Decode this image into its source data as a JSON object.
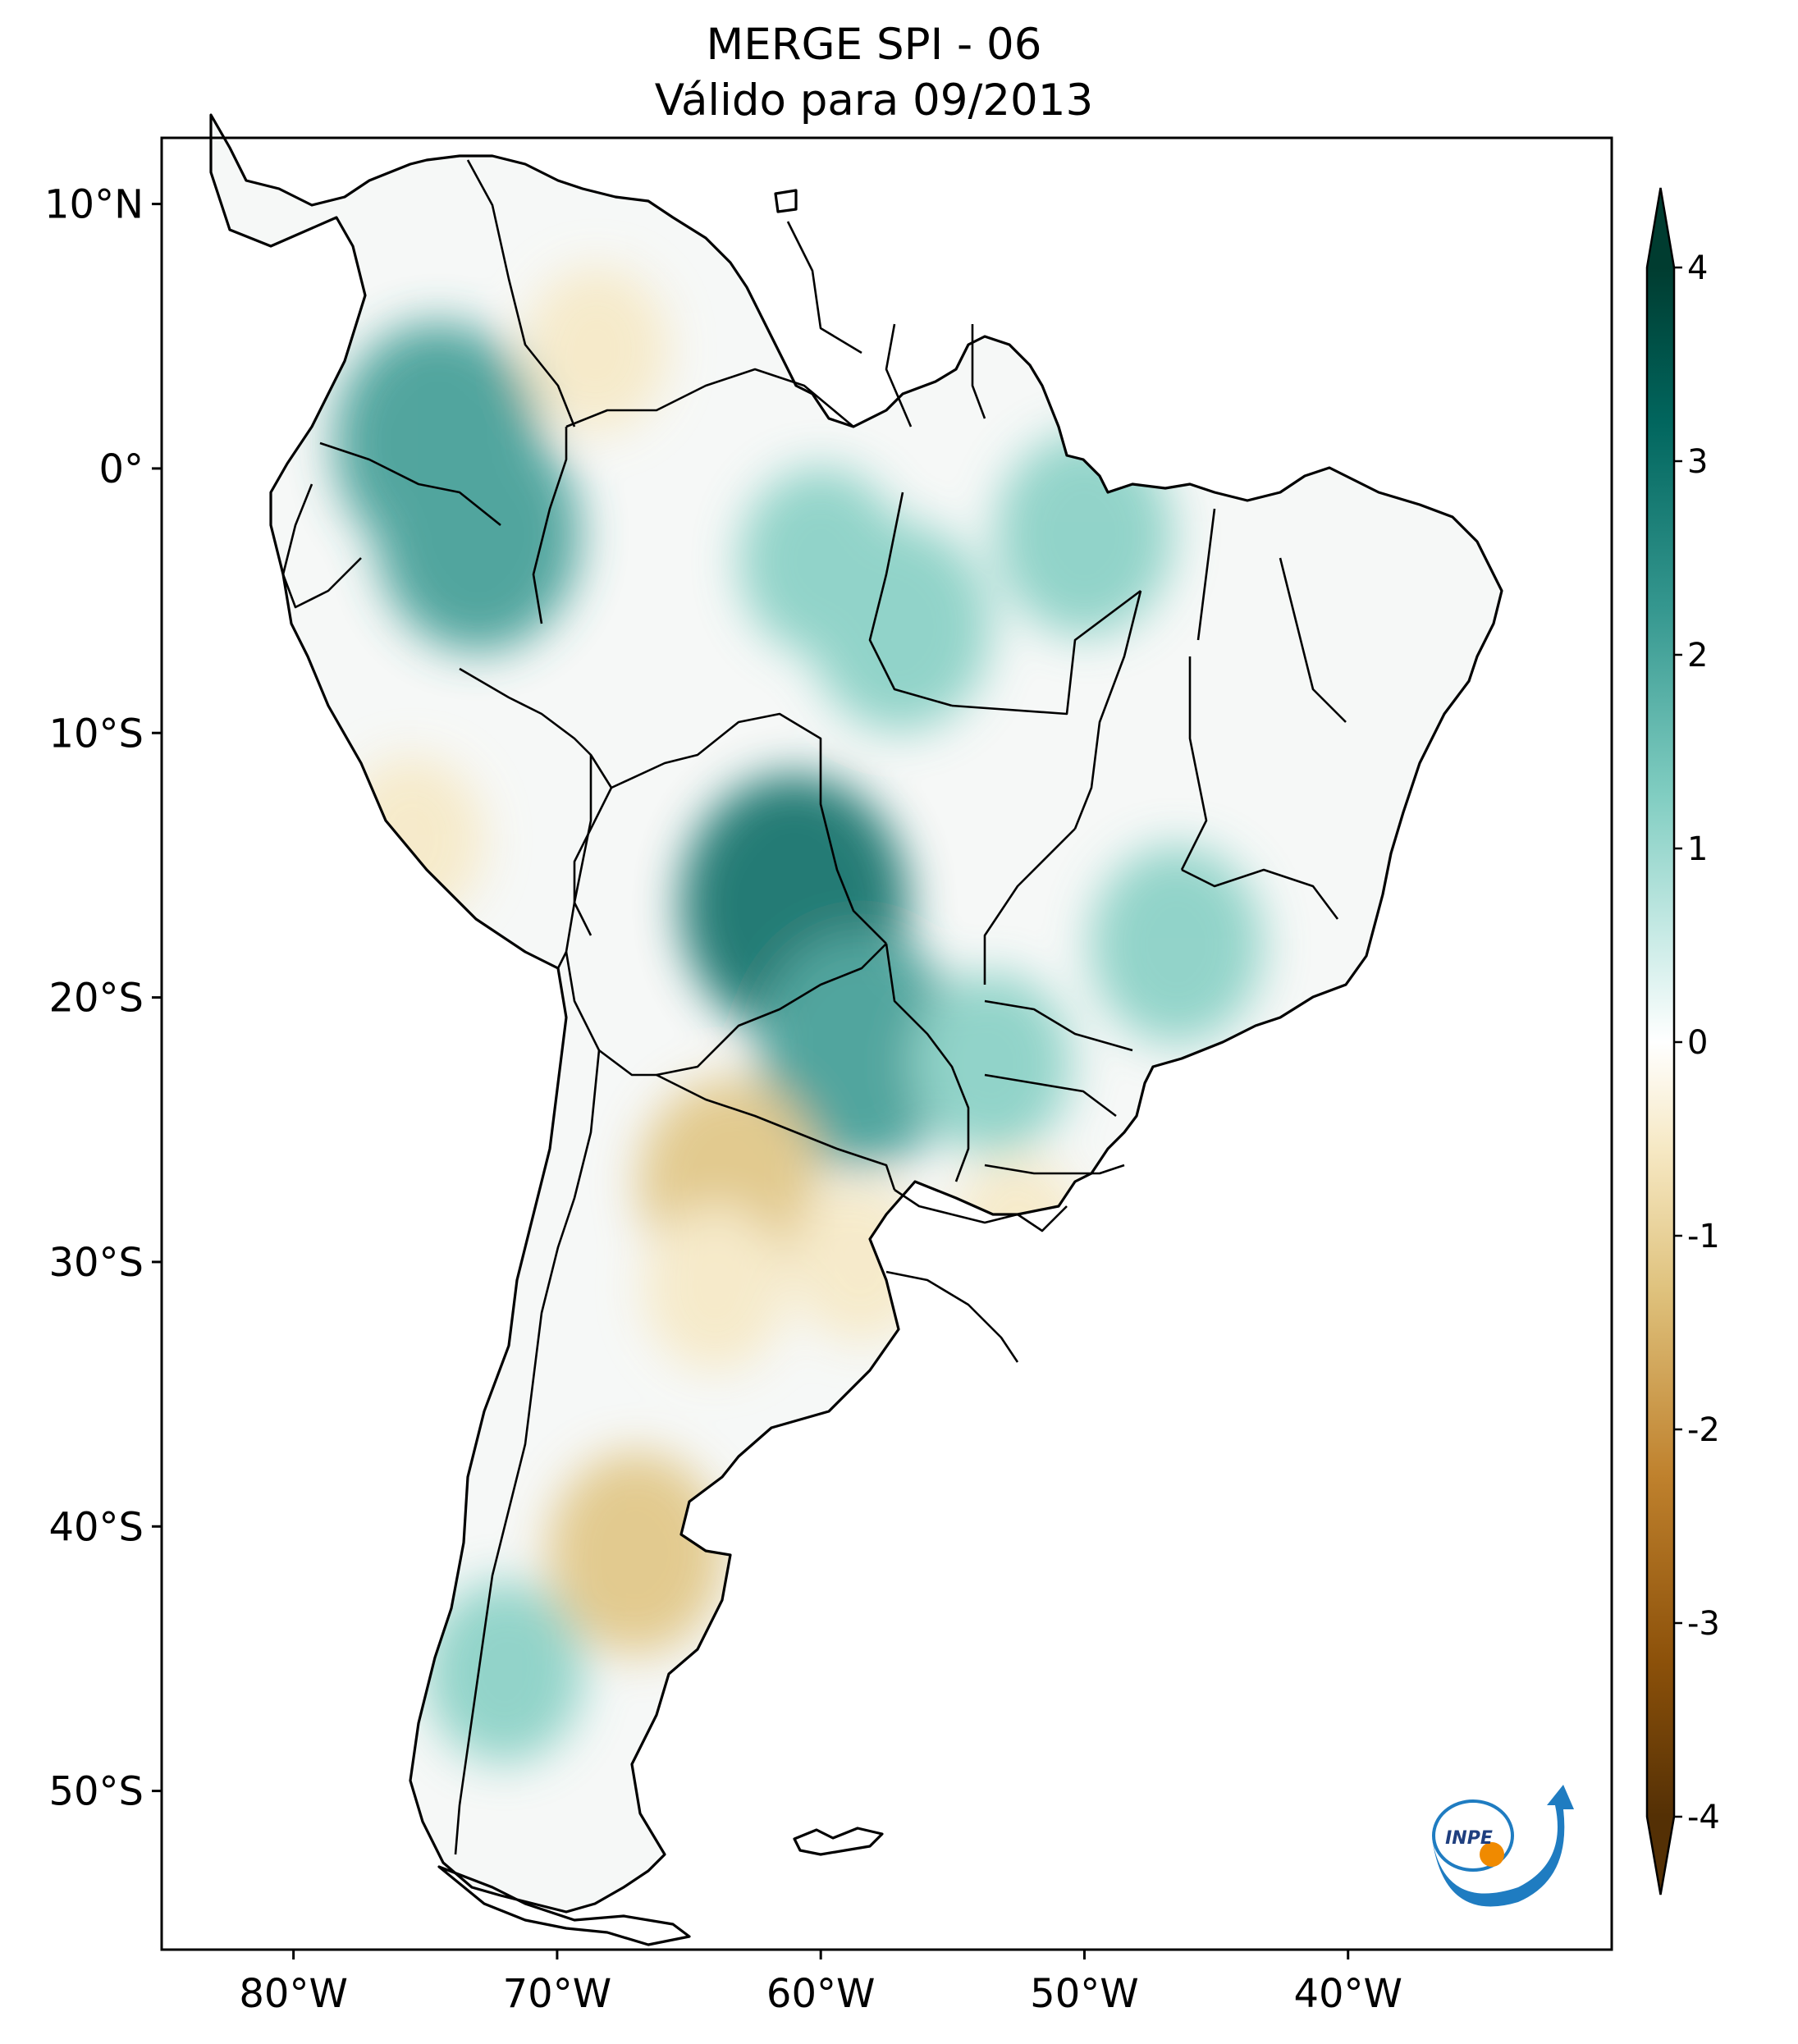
{
  "title": {
    "line1": "MERGE   SPI - 06",
    "line2": "Válido para 09/2013"
  },
  "map": {
    "lon_range": [
      -85,
      -30
    ],
    "lat_range": [
      -56,
      12.5
    ],
    "x_ticks": [
      {
        "value": -80,
        "label": "80°W"
      },
      {
        "value": -70,
        "label": "70°W"
      },
      {
        "value": -60,
        "label": "60°W"
      },
      {
        "value": -50,
        "label": "50°W"
      },
      {
        "value": -40,
        "label": "40°W"
      }
    ],
    "y_ticks": [
      {
        "value": 10,
        "label": "10°N"
      },
      {
        "value": 0,
        "label": "0°"
      },
      {
        "value": -10,
        "label": "10°S"
      },
      {
        "value": -20,
        "label": "20°S"
      },
      {
        "value": -30,
        "label": "30°S"
      },
      {
        "value": -40,
        "label": "40°S"
      },
      {
        "value": -50,
        "label": "50°S"
      }
    ]
  },
  "colorbar": {
    "range": [
      -4,
      4
    ],
    "extend": "both",
    "ticks": [
      {
        "value": 4,
        "label": "4"
      },
      {
        "value": 3,
        "label": "3"
      },
      {
        "value": 2,
        "label": "2"
      },
      {
        "value": 1,
        "label": "1"
      },
      {
        "value": 0,
        "label": "0"
      },
      {
        "value": -1,
        "label": "-1"
      },
      {
        "value": -2,
        "label": "-2"
      },
      {
        "value": -3,
        "label": "-3"
      },
      {
        "value": -4,
        "label": "-4"
      }
    ],
    "colors": [
      "#543005",
      "#8c510a",
      "#bf812d",
      "#dfc27d",
      "#f6e8c3",
      "#ffffff",
      "#c7eae5",
      "#80cdc1",
      "#35978f",
      "#01665e",
      "#003c30"
    ]
  },
  "logo": {
    "text": "INPE",
    "colors": {
      "blue": "#1f7cc1",
      "orange": "#f08a00"
    }
  },
  "anomalies": [
    {
      "lon": -74.5,
      "lat": 1.0,
      "spi": 2.4
    },
    {
      "lon": -73.0,
      "lat": -2.5,
      "spi": 2.3
    },
    {
      "lon": -61.0,
      "lat": -16.5,
      "spi": 2.8
    },
    {
      "lon": -58.5,
      "lat": -22.0,
      "spi": 2.3
    },
    {
      "lon": -57.0,
      "lat": -6.0,
      "spi": 1.8
    },
    {
      "lon": -50.0,
      "lat": -2.5,
      "spi": 1.7
    },
    {
      "lon": -46.5,
      "lat": -18.0,
      "spi": 1.6
    },
    {
      "lon": -53.5,
      "lat": -22.5,
      "spi": 1.3
    },
    {
      "lon": -60.0,
      "lat": -3.5,
      "spi": 1.4
    },
    {
      "lon": -63.5,
      "lat": -27.0,
      "spi": -1.8
    },
    {
      "lon": -67.0,
      "lat": -41.0,
      "spi": -1.7
    },
    {
      "lon": -64.0,
      "lat": -31.0,
      "spi": -1.0
    },
    {
      "lon": -68.5,
      "lat": 4.5,
      "spi": -1.0
    },
    {
      "lon": -58.5,
      "lat": -30.0,
      "spi": -0.9
    },
    {
      "lon": -75.5,
      "lat": -14.0,
      "spi": -1.0
    },
    {
      "lon": -72.0,
      "lat": -45.5,
      "spi": 1.3
    },
    {
      "lon": -52.5,
      "lat": -29.0,
      "spi": -0.8
    }
  ]
}
